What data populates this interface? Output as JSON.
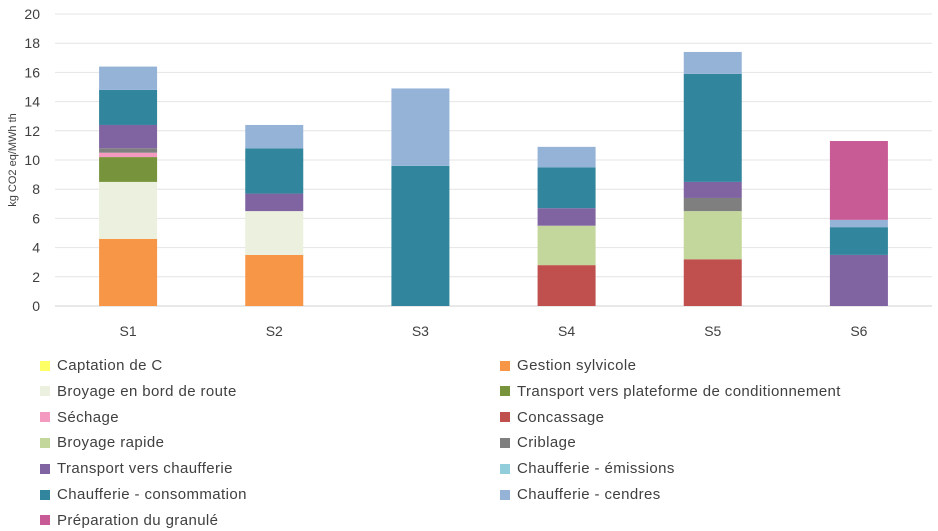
{
  "chart_data": {
    "type": "bar",
    "stacked": true,
    "categories": [
      "S1",
      "S2",
      "S3",
      "S4",
      "S5",
      "S6"
    ],
    "ylabel": "kg CO2 eq/MWh th",
    "ylim": [
      0,
      20
    ],
    "yticks": [
      0,
      2,
      4,
      6,
      8,
      10,
      12,
      14,
      16,
      18,
      20
    ],
    "grid": true,
    "legend_position": "bottom",
    "series": [
      {
        "name": "Captation de C",
        "color": "#ffff66",
        "values": [
          0,
          0,
          0,
          0,
          0,
          0
        ]
      },
      {
        "name": "Gestion sylvicole",
        "color": "#f79646",
        "values": [
          4.6,
          3.5,
          0,
          0,
          0,
          0
        ]
      },
      {
        "name": "Broyage en bord de route",
        "color": "#ebf1de",
        "values": [
          3.9,
          3.0,
          0,
          0,
          0,
          0
        ]
      },
      {
        "name": "Transport vers plateforme de conditionnement",
        "color": "#77933c",
        "values": [
          1.7,
          0,
          0,
          0,
          0,
          0
        ]
      },
      {
        "name": "Séchage",
        "color": "#f49ac1",
        "values": [
          0.3,
          0,
          0,
          0,
          0,
          0
        ]
      },
      {
        "name": "Concassage",
        "color": "#c0504d",
        "values": [
          0,
          0,
          0,
          2.8,
          3.2,
          0
        ]
      },
      {
        "name": "Broyage rapide",
        "color": "#c3d69b",
        "values": [
          0,
          0,
          0,
          2.7,
          3.3,
          0
        ]
      },
      {
        "name": "Criblage",
        "color": "#7f7f7f",
        "values": [
          0.3,
          0,
          0,
          0,
          0.9,
          0
        ]
      },
      {
        "name": "Transport vers chaufferie",
        "color": "#8064a2",
        "values": [
          1.6,
          1.2,
          0,
          1.2,
          1.1,
          3.5
        ]
      },
      {
        "name": "Chaufferie - émissions",
        "color": "#92cddc",
        "values": [
          0,
          0,
          0,
          0,
          0,
          0
        ]
      },
      {
        "name": "Chaufferie - consommation",
        "color": "#31859c",
        "values": [
          2.4,
          3.1,
          9.6,
          2.8,
          7.4,
          1.9
        ]
      },
      {
        "name": "Chaufferie - cendres",
        "color": "#95b3d7",
        "values": [
          1.6,
          1.6,
          5.3,
          1.4,
          1.5,
          0.5
        ]
      },
      {
        "name": "Préparation du granulé",
        "color": "#c85a96",
        "values": [
          0,
          0,
          0,
          0,
          0,
          5.4
        ]
      }
    ]
  }
}
